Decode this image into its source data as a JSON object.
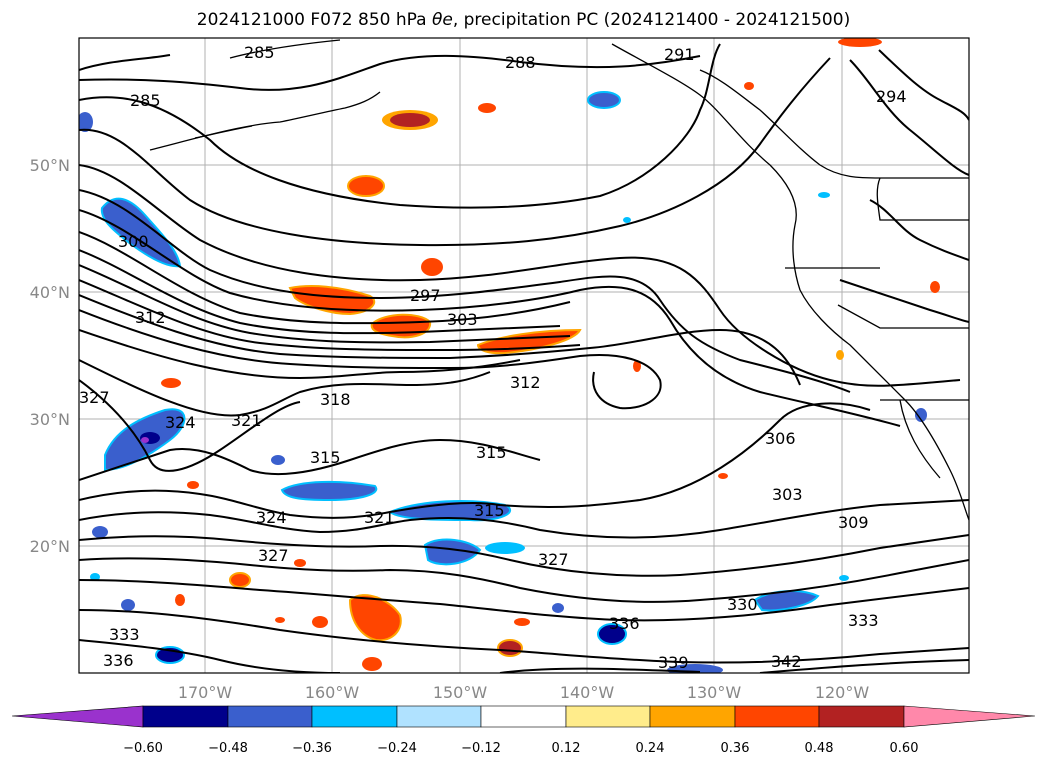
{
  "title": {
    "run": "2024121000",
    "forecast": "F072",
    "level": "850 hPa",
    "variable": "θe",
    "precip_label": "precipitation PC",
    "period": "(2024121400 - 2024121500)"
  },
  "axes": {
    "lat_ticks": [
      "50°N",
      "40°N",
      "30°N",
      "20°N"
    ],
    "lon_ticks": [
      "170°W",
      "160°W",
      "150°W",
      "140°W",
      "130°W",
      "120°W"
    ]
  },
  "colorbar": {
    "ticks": [
      "−0.60",
      "−0.48",
      "−0.36",
      "−0.24",
      "−0.12",
      "0.12",
      "0.24",
      "0.36",
      "0.48",
      "0.60"
    ],
    "colors": [
      "#9a32cd",
      "#00008b",
      "#3a5fcd",
      "#00bfff",
      "#b0e2ff",
      "#ffffff",
      "#ffec8b",
      "#ffa500",
      "#ff4500",
      "#b22222",
      "#ff88aa"
    ]
  },
  "contour_labels": [
    "285",
    "288",
    "291",
    "294",
    "285",
    "300",
    "297",
    "303",
    "312",
    "327",
    "324",
    "321",
    "318",
    "315",
    "312",
    "315",
    "306",
    "303",
    "309",
    "324",
    "321",
    "315",
    "327",
    "327",
    "330",
    "333",
    "336",
    "333",
    "336",
    "339",
    "342"
  ]
}
